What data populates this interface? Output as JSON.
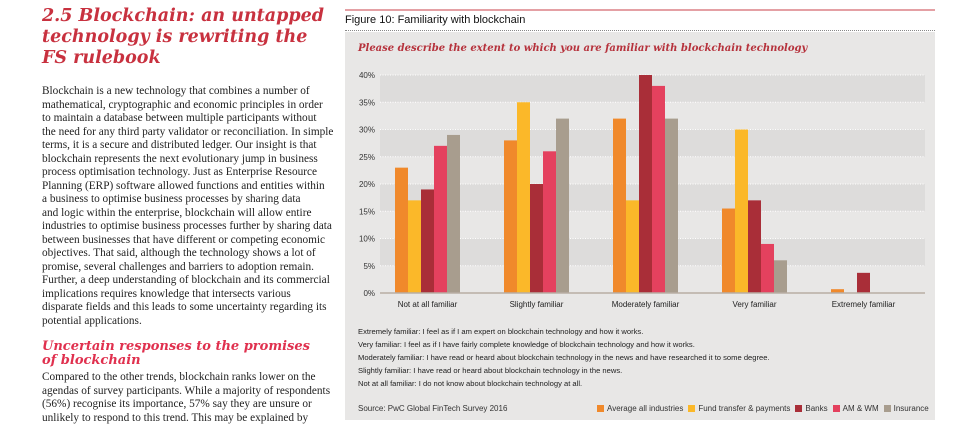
{
  "heading": [
    "2.5 Blockchain: an untapped",
    "technology is rewriting the",
    "FS rulebook"
  ],
  "paragraph1": [
    "Blockchain is a new technology that combines a number of",
    "mathematical, cryptographic and economic principles in order",
    "to maintain a database between multiple participants without",
    "the need for any third party validator or reconciliation. In simple",
    "terms, it is a secure and distributed ledger. Our insight is that",
    "blockchain represents the next evolutionary jump in business",
    "process optimisation technology. Just as Enterprise Resource",
    "Planning (ERP) software allowed functions and entities within",
    "a business to optimise business processes by sharing data",
    "and logic within the enterprise, blockchain will allow entire",
    "industries to optimise business processes further by sharing data",
    "between businesses that have different or competing economic",
    "objectives. That said, although the technology shows a lot of",
    "promise, several challenges and barriers to adoption remain.",
    "Further, a deep understanding of blockchain and its commercial",
    "implications requires knowledge that intersects various",
    "disparate fields and this leads to some uncertainty regarding its",
    "potential applications."
  ],
  "subheading": [
    "Uncertain responses to the promises",
    "of blockchain"
  ],
  "paragraph2": [
    "Compared to the other trends, blockchain ranks lower on the",
    "agendas of survey participants. While a majority of respondents",
    "(56%) recognise its importance, 57% say they are unsure or",
    "unlikely to respond to this trend. This may be explained by"
  ],
  "figure": {
    "title": "Figure 10: Familiarity with blockchain",
    "definitions": [
      "Extremely familiar: I feel as if I am expert on blockchain technology and how it works.",
      "Very familiar: I feel as if I have fairly complete knowledge of blockchain technology and how it works.",
      "Moderately familiar: I have read or heard about blockchain technology in the news and have researched it to some degree.",
      "Slightly familiar: I have read or heard about blockchain technology in the news.",
      "Not at all familiar: I do not know about blockchain technology at all."
    ],
    "source": "Source: PwC Global FinTech Survey 2016"
  },
  "chart_data": {
    "type": "bar",
    "title": "Please describe the extent to which you are familiar with blockchain technology",
    "categories": [
      "Not at all familiar",
      "Slightly familiar",
      "Moderately familiar",
      "Very familiar",
      "Extremely familiar"
    ],
    "series": [
      {
        "name": "Average all industries",
        "color": "#f0892b",
        "values": [
          23,
          28,
          32,
          15.5,
          0.7
        ]
      },
      {
        "name": "Fund transfer & payments",
        "color": "#fbb829",
        "values": [
          17,
          35,
          17,
          30,
          0
        ]
      },
      {
        "name": "Banks",
        "color": "#a92e38",
        "values": [
          19,
          20,
          40,
          17,
          3.7
        ]
      },
      {
        "name": "AM & WM",
        "color": "#e4415e",
        "values": [
          27,
          26,
          38,
          9,
          0
        ]
      },
      {
        "name": "Insurance",
        "color": "#a89d8e",
        "values": [
          29,
          32,
          32,
          6,
          0
        ]
      }
    ],
    "yticks": [
      "0%",
      "5%",
      "10%",
      "15%",
      "20%",
      "25%",
      "30%",
      "35%",
      "40%"
    ],
    "ylim": [
      0,
      40
    ],
    "grid": true,
    "legend": "bottom-right"
  }
}
